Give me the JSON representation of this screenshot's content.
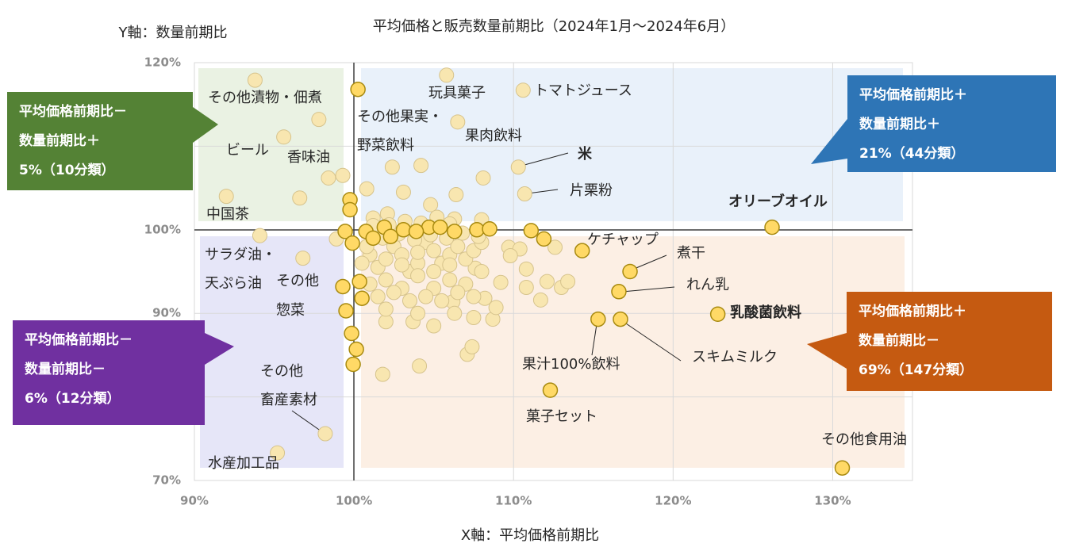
{
  "chart_data": {
    "type": "scatter",
    "title": "平均価格と販売数量前期比（2024年1月～2024年6月）",
    "x_label": "X軸：平均価格前期比",
    "y_label": "Y軸：数量前期比",
    "xlim": [
      90,
      135
    ],
    "ylim": [
      70,
      120
    ],
    "xticks": [
      {
        "value": 90,
        "label": "90%"
      },
      {
        "value": 100,
        "label": "100%"
      },
      {
        "value": 110,
        "label": "110%"
      },
      {
        "value": 120,
        "label": "120%"
      },
      {
        "value": 130,
        "label": "130%"
      }
    ],
    "yticks": [
      {
        "value": 70,
        "label": "70%"
      },
      {
        "value": 80,
        "label": "80%"
      },
      {
        "value": 90,
        "label": "90%"
      },
      {
        "value": 100,
        "label": "100%"
      },
      {
        "value": 110,
        "label": "110%"
      },
      {
        "value": 120,
        "label": "120%"
      }
    ],
    "grid": true,
    "series": [
      {
        "color": "#f8e6b0",
        "x": [
          93.8,
          105.8,
          110.6,
          97.8,
          95.6,
          106.5,
          98.4,
          99.3,
          96.6,
          92.0,
          110.3,
          110.7,
          94.1,
          96.8,
          98.9,
          102.4,
          104.2,
          108.1,
          106.4,
          100.8,
          103.1,
          104.8,
          106.3,
          108.0,
          102.1,
          101.2,
          98.2,
          95.2,
          101.8,
          104.1,
          105.0,
          103.7,
          102.0,
          107.1,
          107.4,
          107.5,
          108.7,
          108.9,
          109.2,
          109.7,
          110.4,
          110.8,
          110.8,
          111.7,
          112.1,
          113.0,
          113.4,
          112.6,
          109.8,
          108.2,
          106.2,
          107.6,
          101,
          101.5,
          102,
          102.5,
          103,
          103.5,
          104,
          104.5,
          105,
          105.5,
          106,
          106.5,
          107,
          107.5,
          108,
          101,
          102,
          103,
          104,
          105,
          106,
          107,
          108,
          101.5,
          102.5,
          103.5,
          104.5,
          105.5,
          106.5,
          107.5,
          100.5,
          100.8,
          101.8,
          102.8,
          103.8,
          104.8,
          105.8,
          106.8,
          107.8,
          103.2,
          104.2,
          105.2,
          102.2,
          101.2,
          106,
          103,
          104,
          105,
          106,
          102,
          104,
          106.3
        ],
        "values": [
          117.9,
          118.5,
          116.7,
          113.2,
          111.1,
          112.9,
          106.2,
          106.5,
          103.8,
          104.0,
          107.5,
          104.3,
          99.3,
          96.6,
          98.9,
          107.5,
          107.7,
          106.2,
          104.2,
          104.9,
          104.5,
          103.0,
          101.3,
          101.2,
          101.9,
          101.4,
          75.6,
          73.3,
          82.7,
          83.7,
          88.5,
          89.0,
          89.0,
          85.1,
          86.0,
          89.5,
          89.3,
          90.7,
          93.7,
          97.9,
          97.7,
          95.3,
          93.1,
          91.6,
          93.8,
          93.1,
          93.8,
          97.9,
          96.9,
          91.8,
          91.4,
          95.4,
          97,
          95.5,
          96.5,
          98,
          97,
          95,
          96,
          98.5,
          97.5,
          96,
          97,
          98,
          96.5,
          97.5,
          98.5,
          93.5,
          94,
          93,
          94.5,
          93,
          94,
          93.5,
          95,
          92,
          92.5,
          91.5,
          92,
          91.5,
          92.5,
          92,
          96,
          98,
          99,
          99.5,
          98.8,
          99.4,
          99,
          99.6,
          99.2,
          101,
          100.8,
          101.5,
          100.6,
          100.5,
          100.7,
          95.8,
          97.3,
          95,
          95.8,
          90.5,
          90,
          90
        ]
      },
      {
        "color": "#ffd966",
        "x": [
          100.25,
          99.75,
          99.75,
          99.45,
          99.9,
          99.3,
          99.5,
          99.85,
          100.15,
          99.95,
          100.5,
          100.35,
          100.75,
          101.9,
          103.1,
          104.7,
          105.4,
          106.3,
          107.7,
          108.5,
          111.1,
          111.9,
          114.3,
          117.3,
          116.6,
          115.3,
          116.7,
          122.8,
          126.2,
          130.6,
          112.3,
          103.9,
          102.3,
          101.2
        ],
        "values": [
          116.8,
          103.6,
          102.4,
          99.8,
          98.4,
          93.2,
          90.3,
          87.6,
          85.7,
          83.9,
          91.8,
          93.8,
          99.8,
          100.3,
          100.0,
          100.3,
          100.3,
          99.8,
          100.0,
          100.1,
          99.9,
          98.9,
          97.5,
          95.0,
          92.6,
          89.3,
          89.3,
          89.9,
          100.3,
          71.5,
          80.8,
          99.8,
          99.2,
          99.0
        ]
      }
    ],
    "annotations": [
      {
        "text": "その他漬物・佃煮",
        "color": "#262626"
      },
      {
        "text": "ビール",
        "color": "#262626"
      },
      {
        "text": "香味油",
        "color": "#262626"
      },
      {
        "text": "中国茶",
        "color": "#262626"
      },
      {
        "text": "その他果実・",
        "color": "#262626"
      },
      {
        "text": "野菜飲料",
        "color": "#262626"
      },
      {
        "text": "玩具菓子",
        "color": "#262626"
      },
      {
        "text": "トマトジュース",
        "color": "#262626"
      },
      {
        "text": "果肉飲料",
        "color": "#262626"
      },
      {
        "text": "米",
        "color": "#ff0000"
      },
      {
        "text": "片栗粉",
        "color": "#262626"
      },
      {
        "text": "オリーブオイル",
        "color": "#ff0000"
      },
      {
        "text": "ケチャップ",
        "color": "#262626"
      },
      {
        "text": "煮干",
        "color": "#262626"
      },
      {
        "text": "れん乳",
        "color": "#262626"
      },
      {
        "text": "乳酸菌飲料",
        "color": "#ff0000"
      },
      {
        "text": "スキムミルク",
        "color": "#262626"
      },
      {
        "text": "果汁100%飲料",
        "color": "#262626"
      },
      {
        "text": "菓子セット",
        "color": "#262626"
      },
      {
        "text": "その他食用油",
        "color": "#262626"
      },
      {
        "text": "サラダ油・",
        "color": "#262626"
      },
      {
        "text": "天ぷら油",
        "color": "#262626"
      },
      {
        "text": "その他",
        "color": "#262626"
      },
      {
        "text": "惣菜",
        "color": "#262626"
      },
      {
        "text": "その他",
        "color": "#262626"
      },
      {
        "text": "畜産素材",
        "color": "#262626"
      },
      {
        "text": "水産加工品",
        "color": "#262626"
      }
    ],
    "quadrants": [
      {
        "color": "#548235",
        "lines": [
          "平均価格前期比－",
          "数量前期比＋",
          "5%（10分類）"
        ]
      },
      {
        "color": "#2e75b6",
        "lines": [
          "平均価格前期比＋",
          "数量前期比＋",
          "21%（44分類）"
        ]
      },
      {
        "color": "#7030a0",
        "lines": [
          "平均価格前期比－",
          "数量前期比－",
          "6%（12分類）"
        ]
      },
      {
        "color": "#c55a11",
        "lines": [
          "平均価格前期比＋",
          "数量前期比－",
          "69%（147分類）"
        ]
      }
    ]
  }
}
